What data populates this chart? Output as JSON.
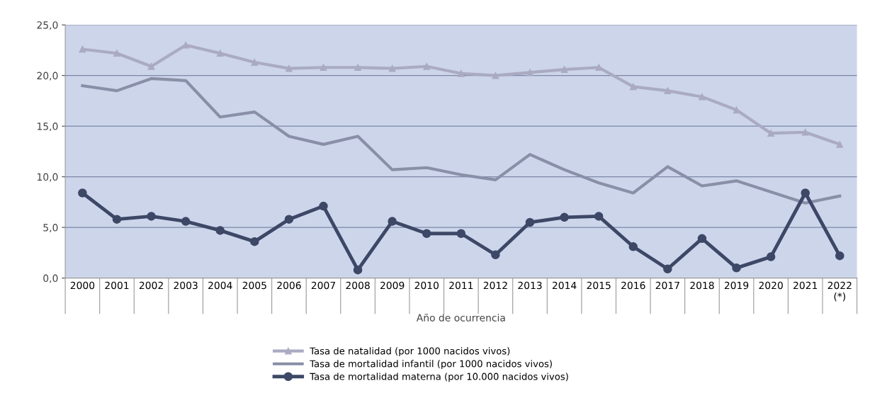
{
  "chart_data": {
    "type": "line",
    "xlabel": "Año de ocurrencia",
    "categories": [
      "2000",
      "2001",
      "2002",
      "2003",
      "2004",
      "2005",
      "2006",
      "2007",
      "2008",
      "2009",
      "2010",
      "2011",
      "2012",
      "2013",
      "2014",
      "2015",
      "2016",
      "2017",
      "2018",
      "2019",
      "2020",
      "2021",
      "2022\n(*)"
    ],
    "series": [
      {
        "name": "Tasa de natalidad (por 1000 nacidos vivos)",
        "color": "#aaabc2",
        "marker": "triangle",
        "values": [
          22.6,
          22.2,
          20.9,
          23.0,
          22.2,
          21.3,
          20.7,
          20.8,
          20.8,
          20.7,
          20.9,
          20.2,
          20.0,
          20.3,
          20.6,
          20.8,
          18.9,
          18.5,
          17.9,
          16.6,
          14.3,
          14.4,
          13.2
        ]
      },
      {
        "name": "Tasa de mortalidad infantil (por 1000 nacidos vivos)",
        "color": "#8a8fa8",
        "marker": "none",
        "values": [
          19.0,
          18.5,
          19.7,
          19.5,
          15.9,
          16.4,
          14.0,
          13.2,
          14.0,
          10.7,
          10.9,
          10.2,
          9.7,
          12.2,
          10.7,
          9.4,
          8.4,
          11.0,
          9.1,
          9.6,
          8.5,
          7.4,
          8.1
        ]
      },
      {
        "name": "Tasa de mortalidad materna (por 10.000 nacidos vivos)",
        "color": "#3d4766",
        "marker": "circle",
        "values": [
          8.4,
          5.8,
          6.1,
          5.6,
          4.7,
          3.6,
          5.8,
          7.1,
          0.8,
          5.6,
          4.4,
          4.4,
          2.3,
          5.5,
          6.0,
          6.1,
          3.1,
          0.9,
          3.9,
          1.0,
          2.1,
          8.4,
          2.2
        ]
      }
    ],
    "ylim": [
      0,
      25
    ],
    "yticks": [
      {
        "value": 0,
        "label": "0,0"
      },
      {
        "value": 5,
        "label": "5,0"
      },
      {
        "value": 10,
        "label": "10,0"
      },
      {
        "value": 15,
        "label": "15,0"
      },
      {
        "value": 20,
        "label": "20,0"
      },
      {
        "value": 25,
        "label": "25,0"
      }
    ],
    "grid": "y",
    "legend": "bottom"
  }
}
